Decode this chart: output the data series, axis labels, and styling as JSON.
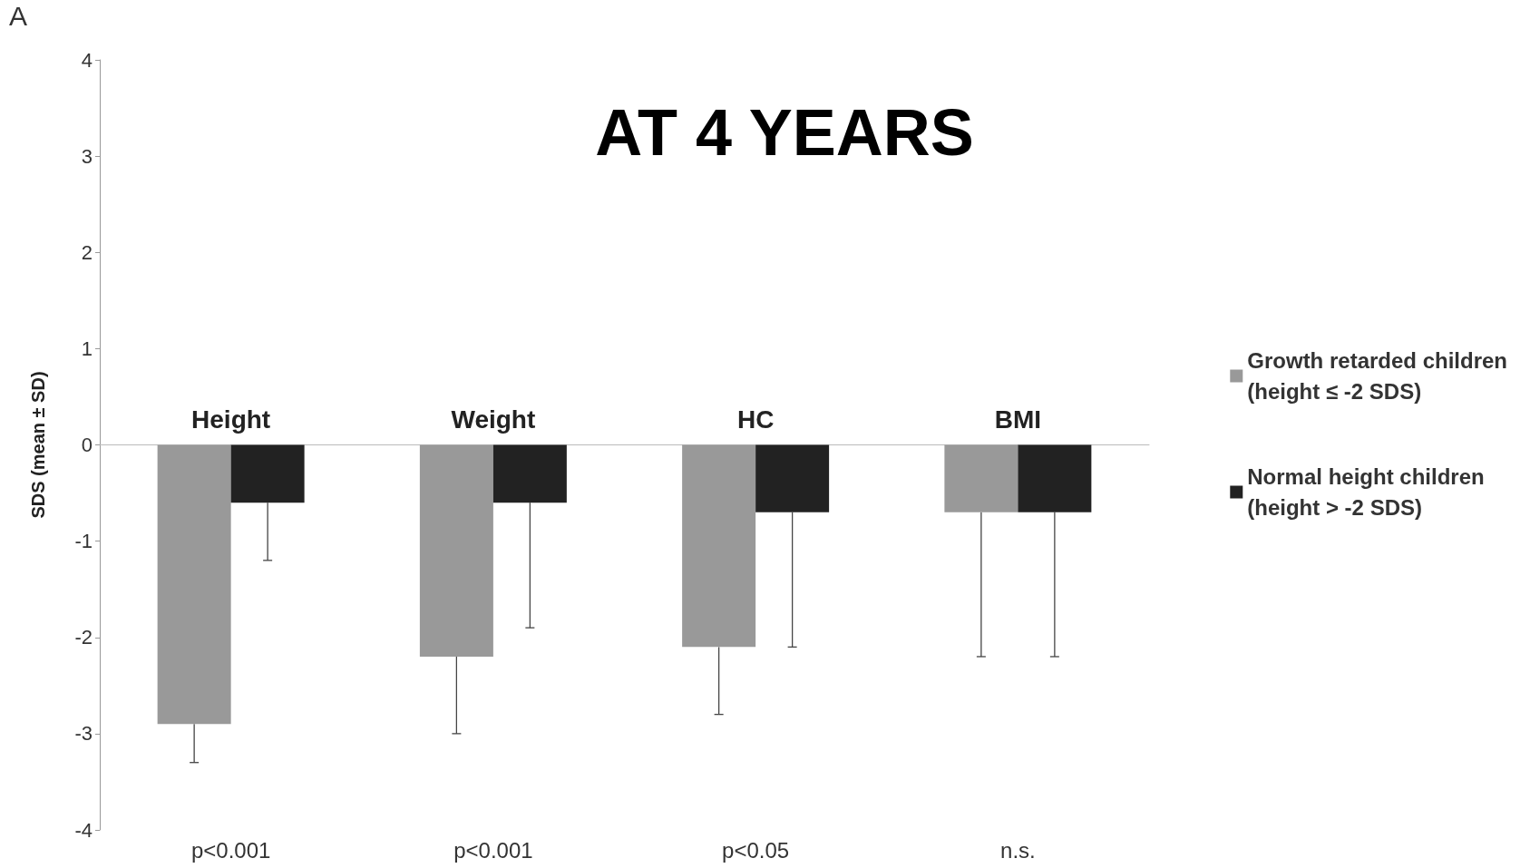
{
  "chart_data": {
    "type": "bar",
    "title": "AT 4 YEARS",
    "ylabel": "SDS (mean ± SD)",
    "categories": [
      "Height",
      "Weight",
      "HC",
      "BMI"
    ],
    "series": [
      {
        "name": "Growth retarded children\n(height ≤ -2 SDS)",
        "color": "#999999",
        "values": [
          -2.9,
          -2.2,
          -2.1,
          -0.7
        ],
        "errors": [
          [
            -3.3,
            -2.9
          ],
          [
            -3.0,
            -2.2
          ],
          [
            -2.8,
            -2.1
          ],
          [
            -2.2,
            -0.7
          ]
        ]
      },
      {
        "name": "Normal height children\n(height > -2 SDS)",
        "color": "#222222",
        "values": [
          -0.6,
          -0.6,
          -0.7,
          -0.7
        ],
        "errors": [
          [
            -1.2,
            -0.6
          ],
          [
            -1.9,
            -0.6
          ],
          [
            -2.1,
            -0.7
          ],
          [
            -2.2,
            -0.7
          ]
        ]
      }
    ],
    "ylim": [
      -4,
      4
    ],
    "yticks": [
      -4,
      -3,
      -2,
      -1,
      0,
      1,
      2,
      3,
      4
    ],
    "grid": false,
    "legend": "right",
    "annotations": [
      "A",
      "p<0.001",
      "p<0.001",
      "p<0.05",
      "n.s."
    ]
  }
}
